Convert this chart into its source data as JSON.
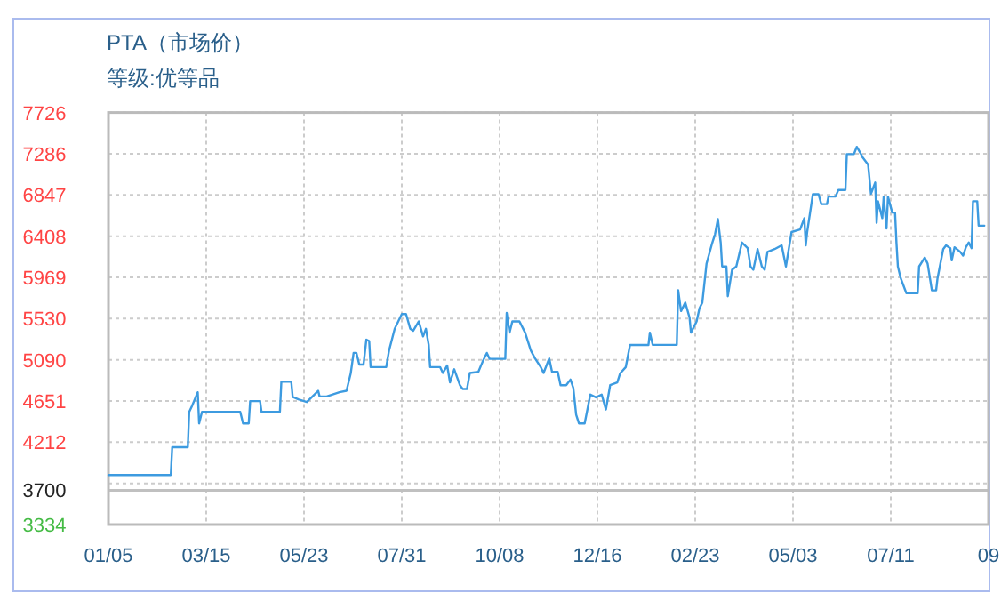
{
  "chart_data": {
    "type": "line",
    "title": "PTA（市场价）",
    "subtitle": "等级:优等品",
    "color": "#3d9be0",
    "grid": true,
    "ylim": [
      3334,
      7726
    ],
    "yticks": [
      7726,
      7286,
      6847,
      6408,
      5969,
      5530,
      5090,
      4651,
      4212,
      {
        "value": 3773,
        "label": null
      },
      3700,
      3334
    ],
    "xlim": [
      "2009-01-05",
      "2010-09-18"
    ],
    "xticks": [
      {
        "value": "2009-01-05",
        "label": "01/05"
      },
      {
        "value": "2009-03-15",
        "label": "03/15"
      },
      {
        "value": "2009-05-23",
        "label": "05/23"
      },
      {
        "value": "2009-07-31",
        "label": "07/31"
      },
      {
        "value": "2009-10-08",
        "label": "10/08"
      },
      {
        "value": "2009-12-16",
        "label": "12/16"
      },
      {
        "value": "2010-02-23",
        "label": "02/23"
      },
      {
        "value": "2010-05-03",
        "label": "05/03"
      },
      {
        "value": "2010-07-11",
        "label": "07/11"
      },
      {
        "value": "2010-09-18",
        "label": "09"
      }
    ],
    "ref_lines": [
      {
        "axis": "y",
        "value": 3700,
        "color": "#c0c0c0"
      }
    ],
    "x": [
      "2009-01-05",
      "2009-02-18",
      "2009-02-19",
      "2009-03-02",
      "2009-03-03",
      "2009-03-05",
      "2009-03-09",
      "2009-03-10",
      "2009-03-12",
      "2009-04-08",
      "2009-04-10",
      "2009-04-14",
      "2009-04-15",
      "2009-04-22",
      "2009-04-23",
      "2009-05-06",
      "2009-05-07",
      "2009-05-14",
      "2009-05-15",
      "2009-05-19",
      "2009-05-25",
      "2009-06-02",
      "2009-06-03",
      "2009-06-08",
      "2009-06-17",
      "2009-06-22",
      "2009-06-25",
      "2009-06-27",
      "2009-06-29",
      "2009-07-01",
      "2009-07-04",
      "2009-07-06",
      "2009-07-08",
      "2009-07-09",
      "2009-07-20",
      "2009-07-22",
      "2009-07-26",
      "2009-07-31",
      "2009-08-03",
      "2009-08-06",
      "2009-08-08",
      "2009-08-12",
      "2009-08-15",
      "2009-08-17",
      "2009-08-19",
      "2009-08-20",
      "2009-08-27",
      "2009-08-29",
      "2009-09-01",
      "2009-09-03",
      "2009-09-06",
      "2009-09-10",
      "2009-09-12",
      "2009-09-15",
      "2009-09-17",
      "2009-09-23",
      "2009-09-26",
      "2009-09-29",
      "2009-10-01",
      "2009-10-12",
      "2009-10-13",
      "2009-10-15",
      "2009-10-17",
      "2009-10-22",
      "2009-10-26",
      "2009-10-30",
      "2009-11-02",
      "2009-11-06",
      "2009-11-08",
      "2009-11-12",
      "2009-11-14",
      "2009-11-18",
      "2009-11-20",
      "2009-11-24",
      "2009-11-27",
      "2009-11-29",
      "2009-12-01",
      "2009-12-03",
      "2009-12-07",
      "2009-12-11",
      "2009-12-15",
      "2009-12-19",
      "2009-12-22",
      "2009-12-25",
      "2009-12-30",
      "2010-01-01",
      "2010-01-05",
      "2010-01-08",
      "2010-01-21",
      "2010-01-22",
      "2010-01-24",
      "2010-02-10",
      "2010-02-11",
      "2010-02-13",
      "2010-02-16",
      "2010-02-19",
      "2010-02-20",
      "2010-02-24",
      "2010-02-26",
      "2010-02-28",
      "2010-03-03",
      "2010-03-07",
      "2010-03-09",
      "2010-03-11",
      "2010-03-13",
      "2010-03-14",
      "2010-03-17",
      "2010-03-18",
      "2010-03-21",
      "2010-03-24",
      "2010-03-28",
      "2010-04-01",
      "2010-04-03",
      "2010-04-05",
      "2010-04-08",
      "2010-04-11",
      "2010-04-13",
      "2010-04-15",
      "2010-04-20",
      "2010-04-25",
      "2010-04-28",
      "2010-04-30",
      "2010-05-02",
      "2010-05-08",
      "2010-05-11",
      "2010-05-12",
      "2010-05-13",
      "2010-05-17",
      "2010-05-21",
      "2010-05-23",
      "2010-05-27",
      "2010-05-28",
      "2010-06-02",
      "2010-06-04",
      "2010-06-09",
      "2010-06-10",
      "2010-06-15",
      "2010-06-17",
      "2010-06-20",
      "2010-06-21",
      "2010-06-25",
      "2010-06-27",
      "2010-06-30",
      "2010-07-01",
      "2010-07-02",
      "2010-07-05",
      "2010-07-06",
      "2010-07-08",
      "2010-07-09",
      "2010-07-12",
      "2010-07-14",
      "2010-07-15",
      "2010-07-16",
      "2010-07-18",
      "2010-07-22",
      "2010-07-30",
      "2010-07-31",
      "2010-08-04",
      "2010-08-06",
      "2010-08-09",
      "2010-08-12",
      "2010-08-13",
      "2010-08-15",
      "2010-08-17",
      "2010-08-19",
      "2010-08-22",
      "2010-08-23",
      "2010-08-25",
      "2010-08-29",
      "2010-08-31",
      "2010-09-02",
      "2010-09-04",
      "2010-09-06",
      "2010-09-07",
      "2010-09-10",
      "2010-09-11",
      "2010-09-15"
    ],
    "values": [
      3862,
      3862,
      4158,
      4158,
      4536,
      4600,
      4745,
      4412,
      4536,
      4536,
      4412,
      4412,
      4650,
      4650,
      4536,
      4536,
      4858,
      4858,
      4696,
      4670,
      4640,
      4760,
      4700,
      4700,
      4745,
      4760,
      4948,
      5164,
      5164,
      5040,
      5040,
      5306,
      5290,
      5013,
      5013,
      5190,
      5421,
      5578,
      5578,
      5421,
      5400,
      5500,
      5340,
      5421,
      5248,
      5013,
      5013,
      4950,
      5030,
      4850,
      4990,
      4820,
      4780,
      4780,
      4950,
      4962,
      5070,
      5164,
      5100,
      5100,
      5590,
      5380,
      5500,
      5500,
      5380,
      5190,
      5105,
      5013,
      4950,
      5105,
      4962,
      4962,
      4820,
      4820,
      4880,
      4790,
      4506,
      4412,
      4412,
      4720,
      4690,
      4720,
      4560,
      4820,
      4850,
      4945,
      5013,
      5248,
      5248,
      5380,
      5250,
      5250,
      5832,
      5610,
      5700,
      5540,
      5380,
      5500,
      5640,
      5700,
      6116,
      6336,
      6430,
      6590,
      6336,
      6085,
      6085,
      5768,
      6050,
      6085,
      6340,
      6280,
      6085,
      6050,
      6270,
      6085,
      6050,
      6240,
      6270,
      6310,
      6085,
      6270,
      6452,
      6480,
      6600,
      6310,
      6452,
      6855,
      6855,
      6750,
      6750,
      6830,
      6830,
      6900,
      6900,
      7283,
      7283,
      7360,
      7283,
      7250,
      7170,
      6860,
      6980,
      6550,
      6780,
      6600,
      6830,
      6490,
      6830,
      6660,
      6660,
      6340,
      6085,
      5960,
      5800,
      5800,
      6085,
      6180,
      6115,
      5830,
      5830,
      5960,
      6115,
      6270,
      6310,
      6280,
      6150,
      6290,
      6240,
      6200,
      6290,
      6340,
      6280,
      6780,
      6780,
      6520,
      6520
    ]
  }
}
